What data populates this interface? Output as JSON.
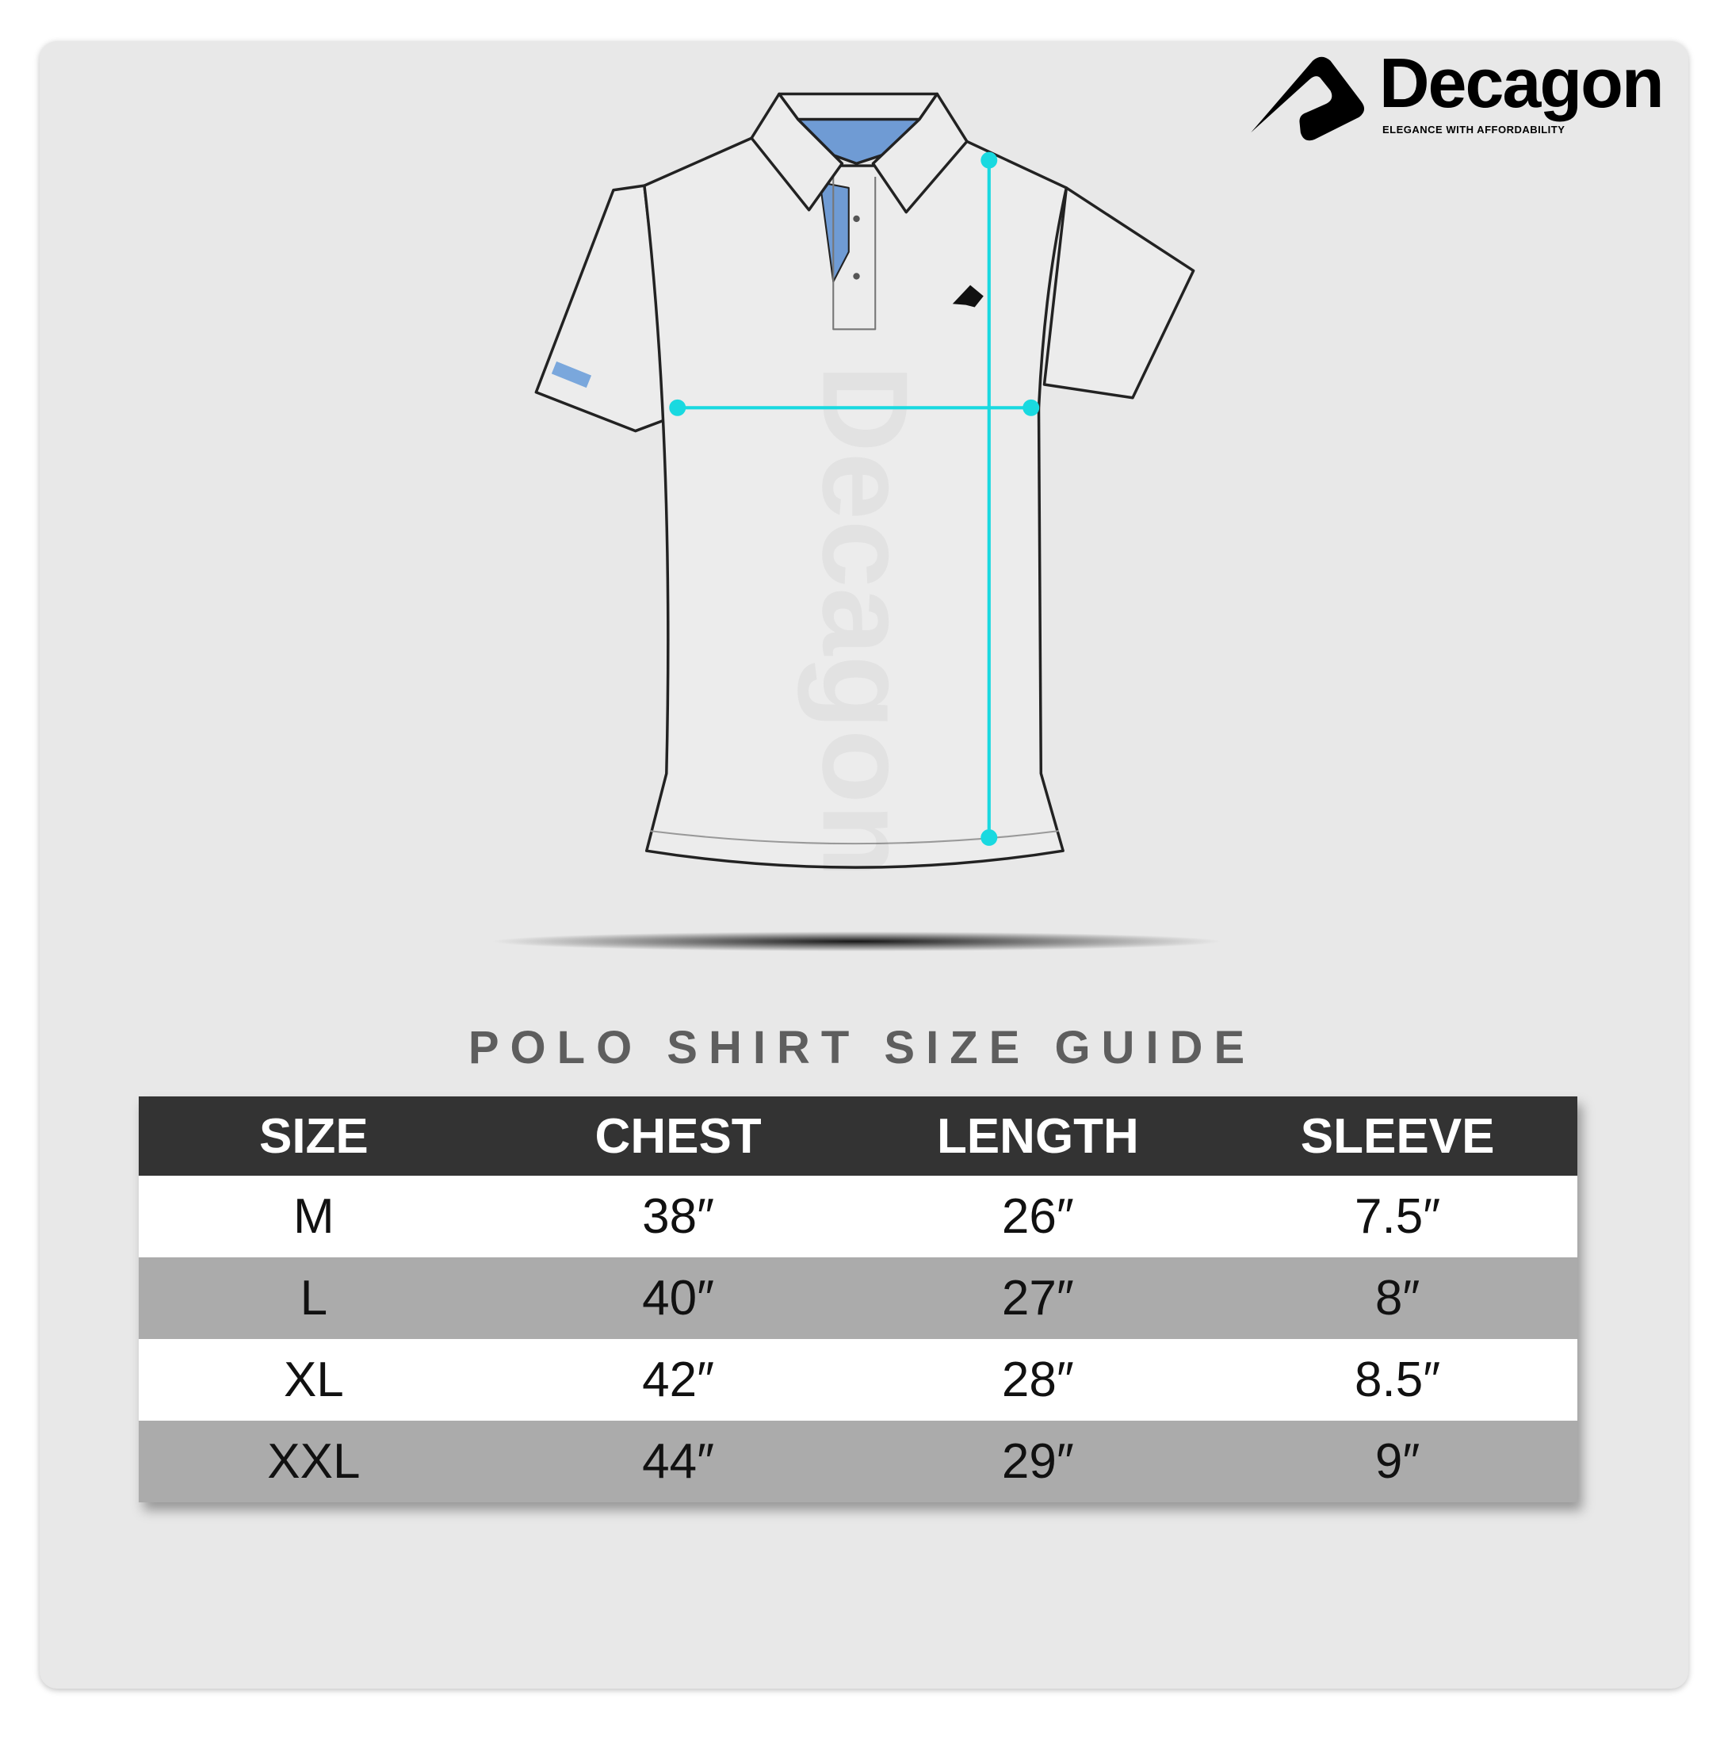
{
  "brand": {
    "name": "Decagon",
    "tagline": "ELEGANCE WITH AFFORDABILITY"
  },
  "watermark": "Decagon",
  "title": "POLO SHIRT SIZE GUIDE",
  "colors": {
    "measure_line": "#19d9e0",
    "header_bg": "#333333",
    "alt_row": "#ababab",
    "collar_accent": "#6f9bd4"
  },
  "table": {
    "headers": [
      "SIZE",
      "CHEST",
      "LENGTH",
      "SLEEVE"
    ],
    "rows": [
      [
        "M",
        "38″",
        "26″",
        "7.5″"
      ],
      [
        "L",
        "40″",
        "27″",
        "8″"
      ],
      [
        "XL",
        "42″",
        "28″",
        "8.5″"
      ],
      [
        "XXL",
        "44″",
        "29″",
        "9″"
      ]
    ]
  }
}
